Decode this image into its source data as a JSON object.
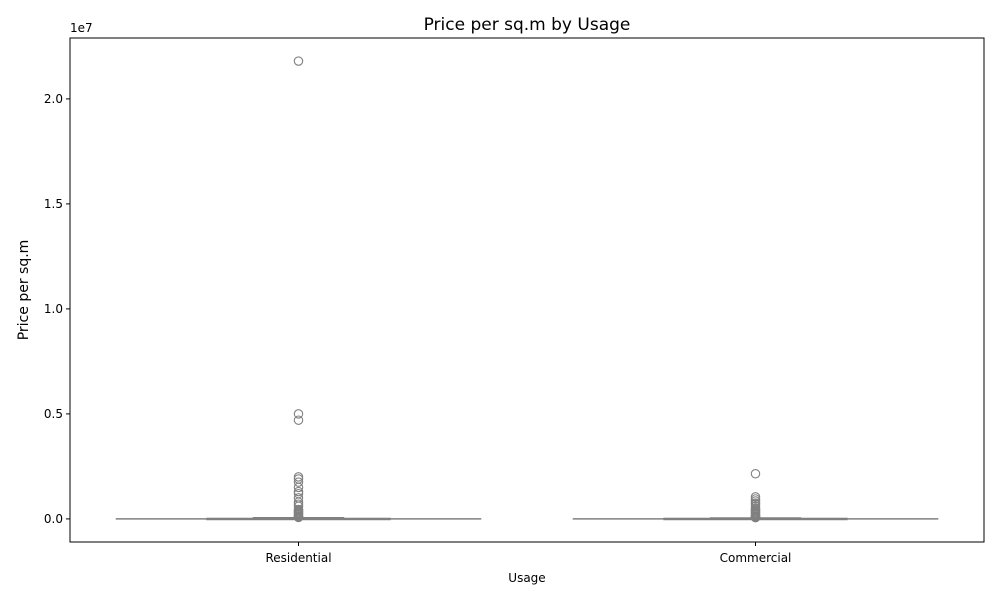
{
  "chart_data": {
    "type": "box",
    "title": "Price per sq.m by Usage",
    "xlabel": "Usage",
    "ylabel": "Price per sq.m",
    "y_offset_label": "1e7",
    "ylim": [
      -1100000,
      22900000
    ],
    "yticks": [
      0,
      5000000,
      10000000,
      15000000,
      20000000
    ],
    "ytick_labels": [
      "0.0",
      "0.5",
      "1.0",
      "1.5",
      "2.0"
    ],
    "grid": false,
    "categories": [
      "Residential",
      "Commercial"
    ],
    "box_color": "#808080",
    "boxes": [
      {
        "category": "Residential",
        "whisker_low": 0,
        "q1": 1000,
        "median": 8000,
        "q3": 20000,
        "whisker_high": 60000,
        "outliers": [
          21800000,
          5000000,
          4700000,
          2000000,
          1900000,
          1750000,
          1500000,
          1300000,
          1200000,
          1000000,
          800000,
          700000,
          600000,
          450000,
          400000,
          350000,
          300000,
          250000,
          200000,
          150000,
          120000,
          100000,
          80000,
          70000
        ]
      },
      {
        "category": "Commercial",
        "whisker_low": 0,
        "q1": 1000,
        "median": 8000,
        "q3": 20000,
        "whisker_high": 50000,
        "outliers": [
          2150000,
          1050000,
          950000,
          850000,
          750000,
          700000,
          600000,
          500000,
          450000,
          400000,
          350000,
          300000,
          250000,
          200000,
          150000,
          120000,
          100000,
          80000,
          60000
        ]
      }
    ]
  }
}
